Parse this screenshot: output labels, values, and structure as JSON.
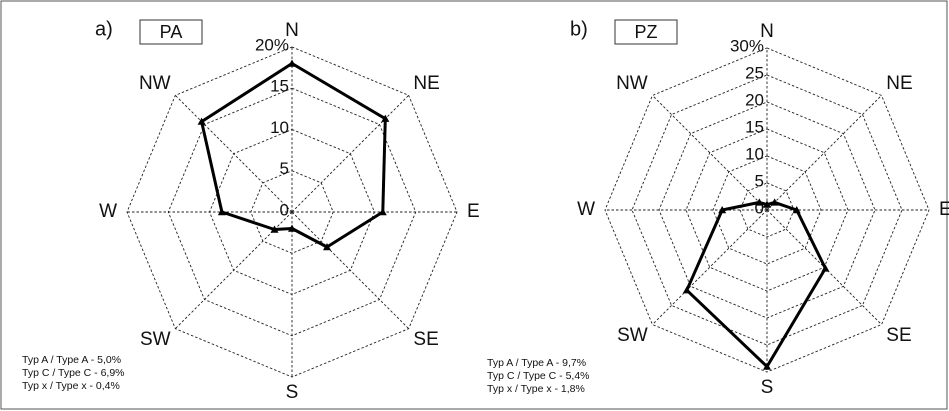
{
  "chart_data": [
    {
      "type": "radar",
      "panel_label": "a)",
      "title": "PA",
      "categories": [
        "N",
        "NE",
        "E",
        "SE",
        "S",
        "SW",
        "W",
        "NW"
      ],
      "values": [
        18,
        16,
        11,
        6,
        2,
        3,
        8.5,
        15.5
      ],
      "color": "#000000",
      "rlim": [
        0,
        20
      ],
      "rticks": [
        0,
        5,
        10,
        15,
        {
          "value": 20,
          "label": "20%"
        }
      ],
      "notes": [
        "Typ A / Type A  - 5,0%",
        "Typ C / Type C  - 6,9%",
        "Typ x / Type x  - 0,4%"
      ]
    },
    {
      "type": "radar",
      "panel_label": "b)",
      "title": "PZ",
      "categories": [
        "N",
        "NE",
        "E",
        "SE",
        "S",
        "SW",
        "W",
        "NW"
      ],
      "values": [
        1,
        2,
        5.5,
        15.3,
        29,
        21,
        8.3,
        2
      ],
      "color": "#000000",
      "rlim": [
        0,
        30
      ],
      "rticks": [
        0,
        5,
        10,
        15,
        20,
        25,
        {
          "value": 30,
          "label": "30%"
        }
      ],
      "notes": [
        "Typ A / Type A  - 9,7%",
        "Typ C / Type C  - 5,4%",
        "Typ x / Type x  - 1,8%"
      ]
    }
  ]
}
